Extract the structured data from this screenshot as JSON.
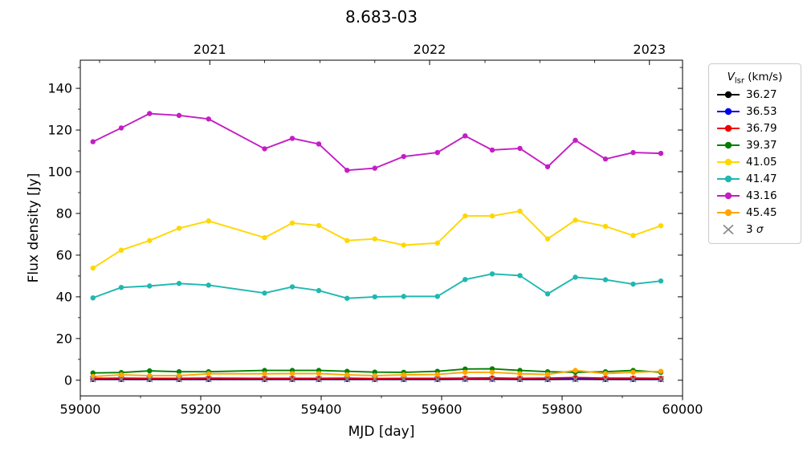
{
  "title": "8.683-03",
  "xlabel": "MJD [day]",
  "ylabel": "Flux density [Jy]",
  "legend": {
    "title_v": "V",
    "title_sub": "lsr",
    "title_unit": " (km/s)",
    "sigma_prefix": "3 ",
    "sigma_symbol": "σ"
  },
  "chart_data": {
    "type": "line",
    "title": "8.683-03",
    "xlabel": "MJD [day]",
    "ylabel": "Flux density [Jy]",
    "legend_title": "V_lsr (km/s)",
    "legend_position": "outside-right",
    "grid": false,
    "xlim": [
      59000,
      60000
    ],
    "ylim": [
      -7.5,
      153.5
    ],
    "xticks": [
      59000,
      59200,
      59400,
      59600,
      59800,
      60000
    ],
    "xminor": [
      59100,
      59300,
      59500,
      59700,
      59900
    ],
    "yticks": [
      0,
      20,
      40,
      60,
      80,
      100,
      120,
      140
    ],
    "yminor": [
      10,
      30,
      50,
      70,
      90,
      110,
      130,
      150
    ],
    "top_axis": {
      "ticks": [
        {
          "mjd": 59215,
          "label": "2021"
        },
        {
          "mjd": 59580,
          "label": "2022"
        },
        {
          "mjd": 59945,
          "label": "2023"
        }
      ],
      "minor_mjd": [
        59032,
        59124,
        59306,
        59398,
        59489,
        59672,
        59763,
        59854
      ]
    },
    "x": [
      59021,
      59068,
      59115,
      59164,
      59213,
      59306,
      59352,
      59396,
      59443,
      59489,
      59537,
      59593,
      59639,
      59684,
      59730,
      59776,
      59822,
      59872,
      59918,
      59964
    ],
    "series": [
      {
        "name": "36.27",
        "color": "#000000",
        "values": [
          0.4,
          0.4,
          0.4,
          0.4,
          0.4,
          0.4,
          0.4,
          0.4,
          0.4,
          0.4,
          0.4,
          0.4,
          0.5,
          0.5,
          0.4,
          0.4,
          0.5,
          0.4,
          0.4,
          0.4
        ]
      },
      {
        "name": "36.53",
        "color": "#0000ee",
        "values": [
          0.5,
          0.5,
          0.5,
          0.5,
          0.5,
          0.5,
          0.5,
          0.5,
          0.5,
          0.5,
          0.5,
          0.5,
          0.6,
          0.6,
          0.5,
          0.5,
          0.6,
          0.5,
          0.5,
          0.5
        ]
      },
      {
        "name": "36.79",
        "color": "#ee0000",
        "values": [
          0.9,
          1.0,
          0.9,
          0.9,
          1.0,
          0.9,
          0.9,
          0.9,
          1.0,
          0.8,
          0.9,
          0.9,
          1.0,
          1.1,
          0.9,
          1.0,
          1.3,
          1.0,
          1.0,
          0.9
        ]
      },
      {
        "name": "39.37",
        "color": "#008000",
        "values": [
          3.5,
          3.7,
          4.5,
          4.1,
          4.1,
          4.7,
          4.7,
          4.7,
          4.3,
          3.9,
          3.8,
          4.3,
          5.4,
          5.5,
          4.7,
          4.1,
          3.8,
          4.1,
          4.7,
          3.8
        ]
      },
      {
        "name": "41.05",
        "color": "#ffd700",
        "values": [
          53.8,
          62.4,
          67.0,
          72.9,
          76.4,
          68.4,
          75.4,
          74.2,
          67.0,
          67.8,
          64.8,
          65.8,
          78.8,
          78.8,
          81.1,
          67.8,
          76.8,
          73.8,
          69.4,
          74.1
        ]
      },
      {
        "name": "41.47",
        "color": "#1fb8b0",
        "values": [
          39.5,
          44.5,
          45.2,
          46.4,
          45.6,
          41.8,
          44.8,
          43.0,
          39.3,
          40.0,
          40.2,
          40.2,
          48.3,
          51.0,
          50.2,
          41.4,
          49.4,
          48.2,
          46.1,
          47.6
        ]
      },
      {
        "name": "43.16",
        "color": "#c41dc4",
        "values": [
          114.4,
          121.0,
          127.9,
          127.0,
          125.3,
          111.0,
          116.0,
          113.3,
          100.7,
          101.7,
          107.3,
          109.2,
          117.2,
          110.4,
          111.2,
          102.4,
          115.1,
          106.1,
          109.2,
          108.8
        ]
      },
      {
        "name": "45.45",
        "color": "#ffa500",
        "values": [
          1.8,
          2.6,
          2.2,
          2.2,
          3.1,
          3.1,
          3.2,
          3.2,
          2.6,
          2.2,
          2.6,
          2.8,
          3.8,
          3.8,
          3.1,
          2.8,
          4.7,
          3.2,
          3.8,
          4.3
        ]
      }
    ],
    "sigma_markers": {
      "label": "3 σ",
      "color": "#888888",
      "level": 0.5
    }
  }
}
